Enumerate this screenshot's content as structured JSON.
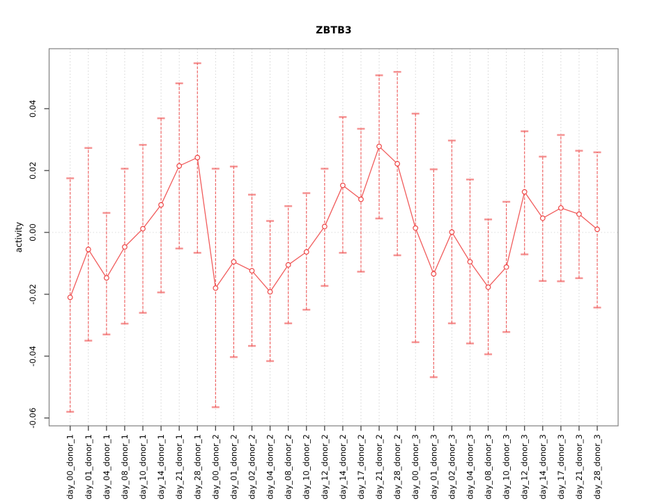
{
  "chart_data": {
    "type": "line",
    "subtype": "points-with-error-bars",
    "title": "ZBTB3",
    "xlabel": "",
    "ylabel": "activity",
    "legend": "none",
    "categories": [
      "day_00_donor_1",
      "day_01_donor_1",
      "day_04_donor_1",
      "day_08_donor_1",
      "day_10_donor_1",
      "day_14_donor_1",
      "day_21_donor_1",
      "day_28_donor_1",
      "day_00_donor_2",
      "day_01_donor_2",
      "day_02_donor_2",
      "day_04_donor_2",
      "day_08_donor_2",
      "day_10_donor_2",
      "day_12_donor_2",
      "day_14_donor_2",
      "day_17_donor_2",
      "day_21_donor_2",
      "day_28_donor_2",
      "day_00_donor_3",
      "day_01_donor_3",
      "day_02_donor_3",
      "day_04_donor_3",
      "day_08_donor_3",
      "day_10_donor_3",
      "day_12_donor_3",
      "day_14_donor_3",
      "day_17_donor_3",
      "day_21_donor_3",
      "day_28_donor_3"
    ],
    "series": [
      {
        "name": "activity",
        "values": [
          -0.021,
          -0.0055,
          -0.0147,
          -0.0047,
          0.0012,
          0.0089,
          0.0215,
          0.0242,
          -0.018,
          -0.0095,
          -0.0124,
          -0.0192,
          -0.0105,
          -0.0063,
          0.0019,
          0.0152,
          0.0107,
          0.0278,
          0.0222,
          0.0014,
          -0.0134,
          0.0001,
          -0.0095,
          -0.0177,
          -0.0112,
          0.0131,
          0.0046,
          0.0079,
          0.0059,
          0.001
        ],
        "upper": [
          0.0175,
          0.0273,
          0.0063,
          0.0206,
          0.0283,
          0.0369,
          0.0482,
          0.0547,
          0.0206,
          0.0213,
          0.0122,
          0.0037,
          0.0085,
          0.0127,
          0.0206,
          0.0373,
          0.0335,
          0.0508,
          0.0519,
          0.0384,
          0.0204,
          0.0297,
          0.0171,
          0.0042,
          0.0099,
          0.0327,
          0.0245,
          0.0315,
          0.0264,
          0.0259
        ],
        "lower": [
          -0.058,
          -0.035,
          -0.033,
          -0.0295,
          -0.026,
          -0.0194,
          -0.0052,
          -0.0066,
          -0.0565,
          -0.0403,
          -0.0367,
          -0.0416,
          -0.0294,
          -0.025,
          -0.0173,
          -0.0066,
          -0.0127,
          0.0045,
          -0.0074,
          -0.0355,
          -0.0468,
          -0.0294,
          -0.0359,
          -0.0394,
          -0.0322,
          -0.0071,
          -0.0157,
          -0.0158,
          -0.0148,
          -0.0243
        ]
      }
    ],
    "yticks": {
      "values": [
        0.04,
        0.02,
        0.0,
        -0.02,
        -0.04,
        -0.06
      ],
      "labels": [
        "0.04",
        "0.02",
        "0.00",
        "-0.02",
        "-0.04",
        "-0.06"
      ]
    },
    "ylim": [
      -0.062,
      0.059
    ],
    "grid": {
      "vertical": "dotted line per category",
      "horizontal": "dotted line at zero only"
    },
    "colors": {
      "series": "#ee3f3f",
      "cap": "#ee3f3f",
      "grid": "#cfcfcf",
      "zero_line": "#dcdcdc",
      "box": "#888888",
      "tick": "#444444",
      "text": "#000000",
      "background": "#ffffff"
    }
  }
}
